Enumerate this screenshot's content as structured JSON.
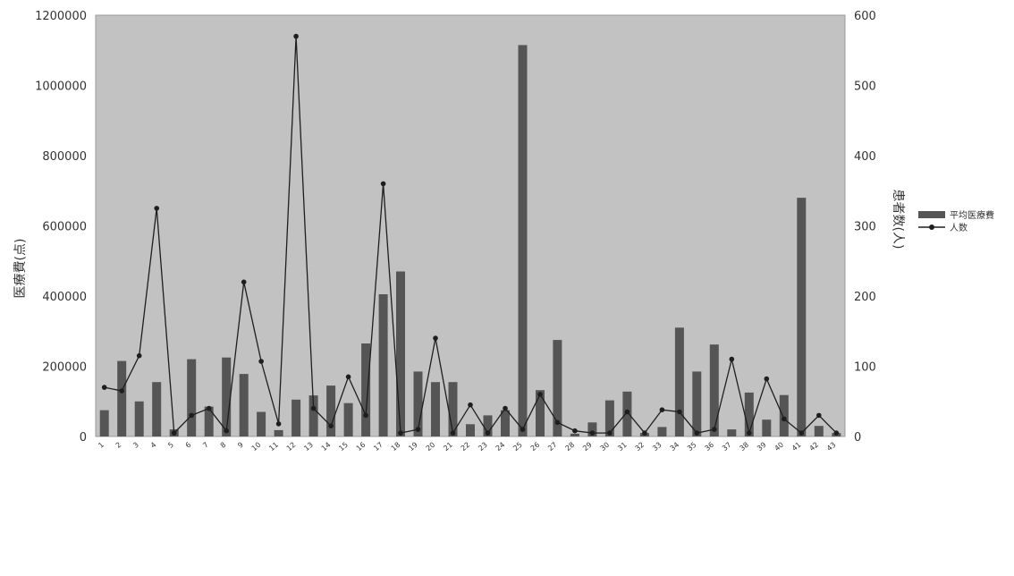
{
  "chart_data": {
    "type": "bar",
    "categories": [
      "1",
      "2",
      "3",
      "4",
      "5",
      "6",
      "7",
      "8",
      "9",
      "10",
      "11",
      "12",
      "13",
      "14",
      "15",
      "16",
      "17",
      "18",
      "19",
      "20",
      "21",
      "22",
      "23",
      "24",
      "25",
      "26",
      "27",
      "28",
      "29",
      "30",
      "31",
      "32",
      "33",
      "34",
      "35",
      "36",
      "37",
      "38",
      "39",
      "40",
      "41",
      "42",
      "43"
    ],
    "series": [
      {
        "name": "平均医療費",
        "type": "bar",
        "axis": "left",
        "values": [
          75000,
          215000,
          100000,
          155000,
          20000,
          220000,
          85000,
          225000,
          178000,
          70000,
          18000,
          105000,
          117000,
          145000,
          95000,
          265000,
          405000,
          470000,
          185000,
          155000,
          155000,
          35000,
          60000,
          75000,
          1115000,
          132000,
          275000,
          8000,
          40000,
          103000,
          128000,
          10000,
          27000,
          310000,
          185000,
          262000,
          20000,
          125000,
          48000,
          118000,
          680000,
          30000,
          10000
        ]
      },
      {
        "name": "人数",
        "type": "line",
        "axis": "right",
        "values": [
          70,
          65,
          115,
          325,
          5,
          30,
          40,
          8,
          220,
          107,
          18,
          570,
          40,
          15,
          85,
          30,
          360,
          5,
          10,
          140,
          5,
          45,
          5,
          40,
          10,
          60,
          20,
          8,
          5,
          5,
          35,
          5,
          38,
          35,
          5,
          10,
          110,
          5,
          82,
          25,
          5,
          30,
          5
        ]
      }
    ],
    "ylabel": "医療費(点)",
    "ylim": [
      0,
      1200000
    ],
    "yticks": [
      "0",
      "200000",
      "400000",
      "600000",
      "800000",
      "1000000",
      "1200000"
    ],
    "y2label": "患者数(人)",
    "y2lim": [
      0,
      600
    ],
    "y2ticks": [
      "0",
      "100",
      "200",
      "300",
      "400",
      "500",
      "600"
    ],
    "legend_position": "right",
    "grid": false,
    "colors": {
      "plot_bg": "#c2c2c2",
      "bar": "#555555",
      "line": "#1e1e1e"
    }
  }
}
